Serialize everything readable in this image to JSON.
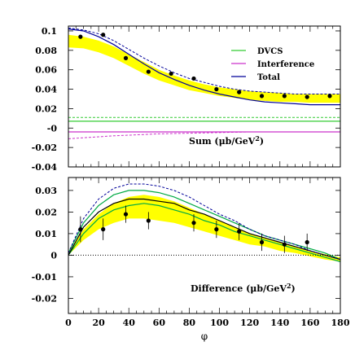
{
  "chart_data": [
    {
      "type": "line",
      "panel_label": "Sum",
      "panel_unit": "(μb/GeV",
      "panel_unit_sup": "2",
      "panel_unit_close": ")",
      "xlim": [
        0,
        180
      ],
      "ylim": [
        -0.04,
        0.105
      ],
      "yticks": [
        0.1,
        0.08,
        0.06,
        0.04,
        0.02,
        0,
        -0.02,
        -0.04
      ],
      "ytick_labels": [
        "0.1",
        "0.08",
        "0.06",
        "0.04",
        "0.02",
        "-0",
        "-0.02",
        "-0.04"
      ],
      "legend": [
        {
          "name": "DVCS",
          "color": "#33cc33"
        },
        {
          "name": "Interference",
          "color": "#cc33cc"
        },
        {
          "name": "Total",
          "color": "#000099"
        }
      ],
      "data_points": {
        "x": [
          8,
          23,
          38,
          53,
          68,
          83,
          98,
          113,
          128,
          143,
          158,
          173
        ],
        "y": [
          0.094,
          0.096,
          0.072,
          0.058,
          0.056,
          0.051,
          0.04,
          0.037,
          0.033,
          0.033,
          0.032,
          0.033
        ]
      },
      "band": {
        "x": [
          0,
          10,
          20,
          30,
          40,
          50,
          60,
          70,
          80,
          90,
          100,
          110,
          120,
          130,
          140,
          150,
          160,
          170,
          180
        ],
        "upper": [
          0.096,
          0.094,
          0.09,
          0.084,
          0.076,
          0.068,
          0.06,
          0.054,
          0.049,
          0.045,
          0.042,
          0.04,
          0.038,
          0.037,
          0.036,
          0.035,
          0.035,
          0.035,
          0.035
        ],
        "lower": [
          0.083,
          0.082,
          0.078,
          0.072,
          0.064,
          0.056,
          0.049,
          0.044,
          0.039,
          0.036,
          0.033,
          0.031,
          0.029,
          0.028,
          0.027,
          0.027,
          0.026,
          0.026,
          0.026
        ]
      },
      "series": [
        {
          "name": "Total",
          "style": "solid",
          "color": "#000099",
          "x": [
            0,
            10,
            20,
            30,
            40,
            50,
            60,
            70,
            80,
            90,
            100,
            110,
            120,
            130,
            140,
            150,
            160,
            170,
            180
          ],
          "y": [
            0.102,
            0.1,
            0.094,
            0.086,
            0.076,
            0.066,
            0.057,
            0.05,
            0.044,
            0.039,
            0.035,
            0.032,
            0.029,
            0.027,
            0.026,
            0.025,
            0.024,
            0.024,
            0.024
          ]
        },
        {
          "style": "dashed",
          "color": "#000099",
          "x": [
            0,
            10,
            20,
            30,
            40,
            50,
            60,
            70,
            80,
            90,
            100,
            110,
            120,
            130,
            140,
            150,
            160,
            170,
            180
          ],
          "y": [
            0.103,
            0.101,
            0.097,
            0.09,
            0.081,
            0.072,
            0.064,
            0.057,
            0.051,
            0.047,
            0.043,
            0.04,
            0.038,
            0.037,
            0.036,
            0.035,
            0.035,
            0.035,
            0.035
          ]
        },
        {
          "name": "DVCS",
          "style": "solid",
          "color": "#33cc33",
          "x": [
            0,
            180
          ],
          "y": [
            0.007,
            0.007
          ]
        },
        {
          "style": "dashed",
          "color": "#33cc33",
          "x": [
            0,
            180
          ],
          "y": [
            0.011,
            0.011
          ]
        },
        {
          "name": "Interference",
          "style": "solid",
          "color": "#cc33cc",
          "x": [
            0,
            180
          ],
          "y": [
            -0.004,
            -0.004
          ]
        },
        {
          "style": "dashed",
          "color": "#cc33cc",
          "x": [
            0,
            30,
            60,
            90,
            120,
            150,
            180
          ],
          "y": [
            -0.011,
            -0.008,
            -0.006,
            -0.005,
            -0.004,
            -0.004,
            -0.004
          ]
        }
      ]
    },
    {
      "type": "line",
      "panel_label": "Difference",
      "panel_unit": "(μb/GeV",
      "panel_unit_sup": "2",
      "panel_unit_close": ")",
      "xlabel": "φ",
      "xlim": [
        0,
        180
      ],
      "ylim": [
        -0.027,
        0.036
      ],
      "yticks": [
        0.03,
        0.02,
        0.01,
        0,
        -0.01,
        -0.02
      ],
      "ytick_labels": [
        "0.03",
        "0.02",
        "0.01",
        "0",
        "-0.01",
        "-0.02"
      ],
      "xticks": [
        0,
        20,
        40,
        60,
        80,
        100,
        120,
        140,
        160,
        180
      ],
      "data_points": {
        "x": [
          8,
          23,
          38,
          53,
          83,
          98,
          113,
          128,
          143,
          158
        ],
        "y": [
          0.012,
          0.012,
          0.019,
          0.016,
          0.015,
          0.012,
          0.011,
          0.006,
          0.005,
          0.006
        ],
        "err": [
          0.006,
          0.005,
          0.004,
          0.004,
          0.004,
          0.004,
          0.004,
          0.004,
          0.004,
          0.004
        ]
      },
      "band": {
        "x": [
          0,
          10,
          20,
          30,
          40,
          50,
          60,
          70,
          80,
          90,
          100,
          110,
          120,
          130,
          140,
          150,
          160,
          170,
          180
        ],
        "upper": [
          0.001,
          0.012,
          0.019,
          0.024,
          0.027,
          0.028,
          0.027,
          0.025,
          0.022,
          0.019,
          0.016,
          0.013,
          0.01,
          0.008,
          0.006,
          0.004,
          0.002,
          0.0005,
          -0.001
        ],
        "lower": [
          0.0,
          0.007,
          0.012,
          0.015,
          0.017,
          0.017,
          0.016,
          0.015,
          0.013,
          0.011,
          0.009,
          0.007,
          0.005,
          0.004,
          0.002,
          0.001,
          -0.0005,
          -0.002,
          -0.003
        ]
      },
      "series": [
        {
          "style": "solid",
          "color": "#00aa44",
          "x": [
            0,
            10,
            20,
            30,
            40,
            50,
            60,
            70,
            80,
            90,
            100,
            110,
            120,
            130,
            140,
            150,
            160,
            170,
            180
          ],
          "y": [
            0.001,
            0.015,
            0.023,
            0.028,
            0.03,
            0.03,
            0.029,
            0.027,
            0.024,
            0.021,
            0.018,
            0.015,
            0.012,
            0.009,
            0.007,
            0.005,
            0.003,
            0.001,
            -0.002
          ]
        },
        {
          "style": "solid",
          "color": "#00aa44",
          "x": [
            0,
            10,
            20,
            30,
            40,
            50,
            60,
            70,
            80,
            90,
            100,
            110,
            120,
            130,
            140,
            150,
            160,
            170,
            180
          ],
          "y": [
            0.0,
            0.01,
            0.017,
            0.021,
            0.023,
            0.024,
            0.023,
            0.021,
            0.019,
            0.016,
            0.014,
            0.011,
            0.009,
            0.007,
            0.005,
            0.003,
            0.001,
            -0.001,
            -0.003
          ]
        },
        {
          "style": "solid",
          "color": "#000000",
          "x": [
            0,
            10,
            20,
            30,
            40,
            50,
            60,
            70,
            80,
            90,
            100,
            110,
            120,
            130,
            140,
            150,
            160,
            170,
            180
          ],
          "y": [
            0.0,
            0.013,
            0.02,
            0.024,
            0.026,
            0.026,
            0.025,
            0.024,
            0.021,
            0.019,
            0.016,
            0.013,
            0.01,
            0.008,
            0.006,
            0.004,
            0.002,
            0.0,
            -0.002
          ]
        },
        {
          "style": "dashed",
          "color": "#000099",
          "x": [
            0,
            10,
            20,
            30,
            40,
            50,
            60,
            70,
            80,
            90,
            100,
            110,
            120,
            130,
            140,
            150,
            160,
            170,
            180
          ],
          "y": [
            0.001,
            0.017,
            0.026,
            0.031,
            0.033,
            0.033,
            0.032,
            0.03,
            0.027,
            0.023,
            0.019,
            0.016,
            0.012,
            0.009,
            0.007,
            0.005,
            0.002,
            0.0,
            -0.002
          ]
        },
        {
          "style": "dotted",
          "color": "#000000",
          "x": [
            0,
            180
          ],
          "y": [
            0,
            0
          ]
        }
      ]
    }
  ]
}
